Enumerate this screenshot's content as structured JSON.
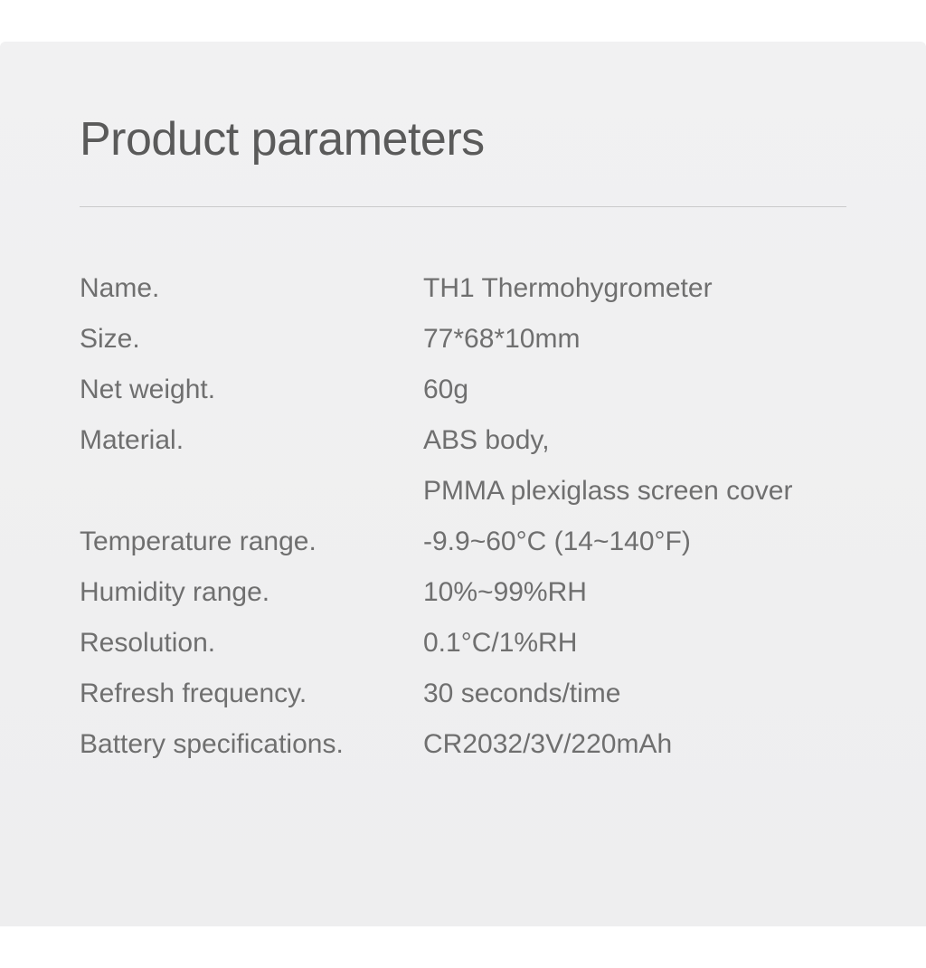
{
  "title": "Product parameters",
  "specs": [
    {
      "label": "Name.",
      "value": "TH1 Thermohygrometer"
    },
    {
      "label": "Size.",
      "value": "77*68*10mm"
    },
    {
      "label": "Net weight.",
      "value": "60g"
    },
    {
      "label": "Material.",
      "value": "ABS body,\nPMMA plexiglass screen cover"
    },
    {
      "label": "Temperature range.",
      "value": "-9.9~60°C (14~140°F)"
    },
    {
      "label": "Humidity range.",
      "value": "10%~99%RH"
    },
    {
      "label": "Resolution.",
      "value": "0.1°C/1%RH"
    },
    {
      "label": "Refresh frequency.",
      "value": "30 seconds/time"
    },
    {
      "label": "Battery specifications.",
      "value": "CR2032/3V/220mAh"
    }
  ],
  "style": {
    "background_color": "#f0f0f1",
    "title_color": "#5a5a5a",
    "text_color": "#6f6f6f",
    "divider_color": "#cacacb",
    "title_fontsize": 52,
    "text_fontsize": 30,
    "label_column_width": 380,
    "line_height": 56
  }
}
